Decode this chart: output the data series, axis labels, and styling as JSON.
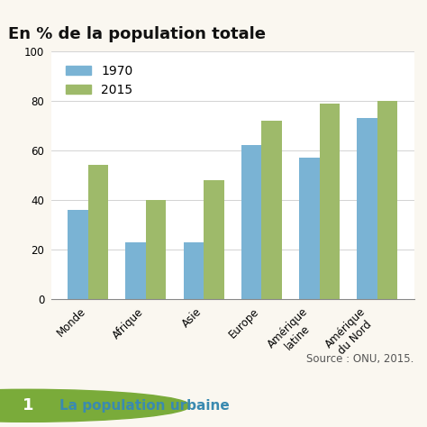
{
  "title": "En % de la population totale",
  "categories": [
    "Monde",
    "Afrique",
    "Asie",
    "Europe",
    "Amérique\nlatine",
    "Amérique\ndu Nord"
  ],
  "values_1970": [
    36,
    23,
    23,
    62,
    57,
    73
  ],
  "values_2015": [
    54,
    40,
    48,
    72,
    79,
    80
  ],
  "color_1970": "#7ab3d4",
  "color_2015": "#9eba6a",
  "ylim": [
    0,
    100
  ],
  "yticks": [
    0,
    20,
    40,
    60,
    80,
    100
  ],
  "legend_labels": [
    "1970",
    "2015"
  ],
  "source_text": "Source : ONU, 2015.",
  "bottom_text": "La population urbaine",
  "bottom_number": "1",
  "bar_width": 0.35,
  "background_color": "#faf7f0",
  "plot_bg_color": "#ffffff",
  "grid_color": "#cccccc",
  "title_fontsize": 13,
  "tick_fontsize": 8.5,
  "legend_fontsize": 10,
  "source_fontsize": 8.5,
  "bottom_strip_color": "#e8e2d0",
  "bottom_orange": "#e07820",
  "bottom_green": "#7aab3a",
  "bottom_text_color": "#3a8ab0"
}
